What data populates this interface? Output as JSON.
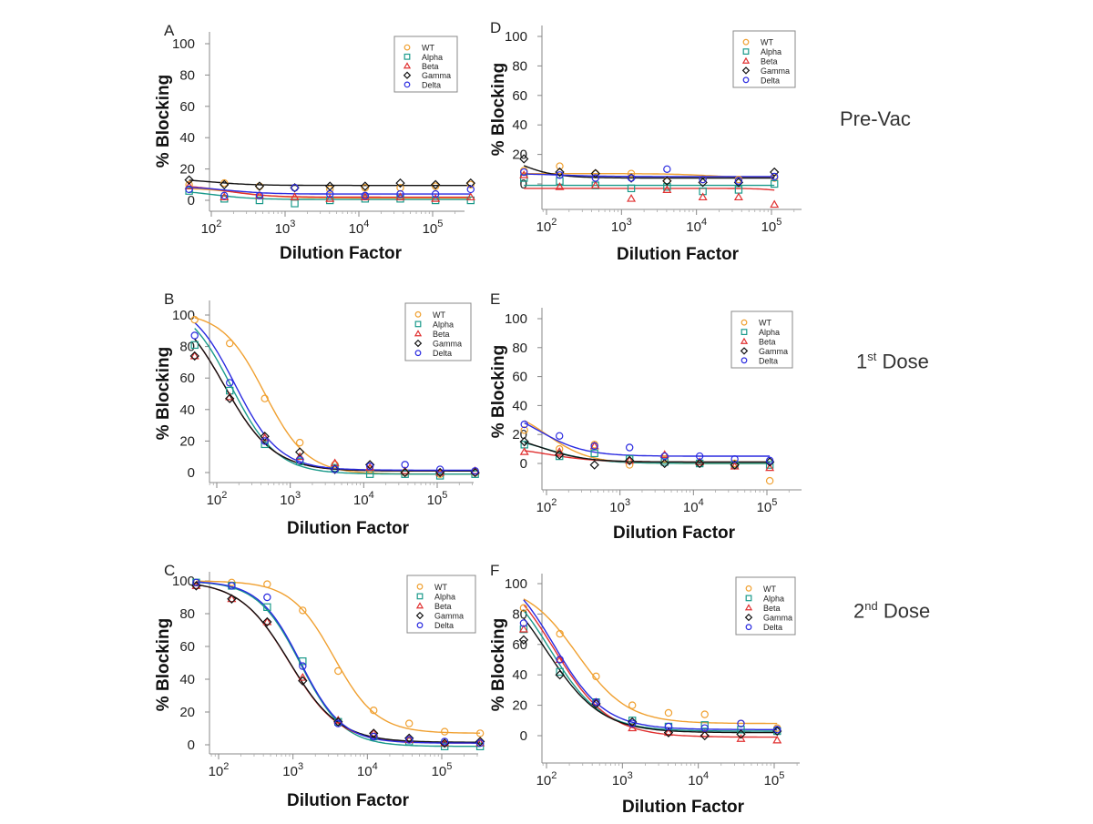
{
  "row_labels": [
    {
      "main": "Pre-Vac",
      "sup": "",
      "rest": ""
    },
    {
      "main": "1",
      "sup": "st",
      "rest": " Dose"
    },
    {
      "main": "2",
      "sup": "nd",
      "rest": " Dose"
    }
  ],
  "colors": {
    "WT": "#f0a030",
    "Alpha": "#1a9a8a",
    "Beta": "#e03030",
    "Gamma": "#111111",
    "Delta": "#2a2ae0"
  },
  "markers": {
    "WT": "circle",
    "Alpha": "square",
    "Beta": "triangle",
    "Gamma": "diamond",
    "Delta": "circle"
  },
  "chart_data": [
    {
      "panel": "A",
      "type": "scatter",
      "xlabel": "Dilution Factor",
      "ylabel": "% Blocking",
      "x_scale": "log",
      "xlim": [
        20,
        700000
      ],
      "ylim": [
        -5,
        105
      ],
      "yticks": [
        0,
        20,
        40,
        60,
        80,
        100
      ],
      "xticks": [
        100,
        1000,
        10000,
        100000
      ],
      "legend": "top-right",
      "series": [
        {
          "name": "WT",
          "x": [
            50,
            150,
            450,
            1350,
            4050,
            12150,
            36450,
            109350,
            328050
          ],
          "y": [
            10,
            11,
            9,
            8,
            7,
            8,
            8,
            9,
            10
          ],
          "fit": [
            8,
            1.5,
            2.4,
            1.5
          ]
        },
        {
          "name": "Alpha",
          "x": [
            50,
            150,
            450,
            1350,
            4050,
            12150,
            36450,
            109350,
            328050
          ],
          "y": [
            6,
            1,
            0,
            -2,
            0,
            1,
            1,
            0,
            0
          ],
          "fit": [
            7,
            0.5,
            2.0,
            1.5
          ]
        },
        {
          "name": "Beta",
          "x": [
            50,
            150,
            450,
            1350,
            4050,
            12150,
            36450,
            109350,
            328050
          ],
          "y": [
            9,
            2,
            3,
            2,
            1,
            2,
            2,
            1,
            2
          ],
          "fit": [
            10,
            2,
            2.2,
            1.5
          ]
        },
        {
          "name": "Gamma",
          "x": [
            50,
            150,
            450,
            1350,
            4050,
            12150,
            36450,
            109350,
            328050
          ],
          "y": [
            13,
            10,
            9,
            8,
            9,
            9,
            11,
            10,
            11
          ],
          "fit": [
            14,
            9.5,
            2.0,
            1.5
          ]
        },
        {
          "name": "Delta",
          "x": [
            50,
            150,
            450,
            1350,
            4050,
            12150,
            36450,
            109350,
            328050
          ],
          "y": [
            7,
            3,
            3,
            8,
            4,
            3,
            4,
            4,
            7
          ],
          "fit": [
            9,
            4,
            2.2,
            1.5
          ]
        }
      ]
    },
    {
      "panel": "B",
      "type": "scatter",
      "xlabel": "Dilution Factor",
      "ylabel": "% Blocking",
      "x_scale": "log",
      "xlim": [
        20,
        700000
      ],
      "ylim": [
        -5,
        105
      ],
      "yticks": [
        0,
        20,
        40,
        60,
        80,
        100
      ],
      "xticks": [
        100,
        1000,
        10000,
        100000
      ],
      "legend": "top-right",
      "series": [
        {
          "name": "WT",
          "x": [
            50,
            150,
            450,
            1350,
            4050,
            12150,
            36450,
            109350,
            328050
          ],
          "y": [
            97,
            82,
            47,
            19,
            5,
            2,
            0,
            -1,
            0
          ],
          "fit": [
            102,
            -1,
            2.65,
            1.5
          ]
        },
        {
          "name": "Alpha",
          "x": [
            50,
            150,
            450,
            1350,
            4050,
            12150,
            36450,
            109350,
            328050
          ],
          "y": [
            81,
            52,
            18,
            7,
            3,
            -1,
            -1,
            -2,
            -1
          ],
          "fit": [
            110,
            -1,
            2.2,
            1.4
          ]
        },
        {
          "name": "Beta",
          "x": [
            50,
            150,
            450,
            1350,
            4050,
            12150,
            36450,
            109350,
            328050
          ],
          "y": [
            74,
            48,
            22,
            10,
            6,
            3,
            1,
            0,
            1
          ],
          "fit": [
            110,
            1,
            2.1,
            1.3
          ]
        },
        {
          "name": "Gamma",
          "x": [
            50,
            150,
            450,
            1350,
            4050,
            12150,
            36450,
            109350,
            328050
          ],
          "y": [
            74,
            47,
            23,
            13,
            2,
            5,
            0,
            0,
            0
          ],
          "fit": [
            110,
            1,
            2.1,
            1.3
          ]
        },
        {
          "name": "Delta",
          "x": [
            50,
            150,
            450,
            1350,
            4050,
            12150,
            36450,
            109350,
            328050
          ],
          "y": [
            87,
            57,
            20,
            8,
            2,
            4,
            5,
            2,
            1
          ],
          "fit": [
            110,
            1.5,
            2.25,
            1.45
          ]
        }
      ]
    },
    {
      "panel": "C",
      "type": "scatter",
      "xlabel": "Dilution Factor",
      "ylabel": "% Blocking",
      "x_scale": "log",
      "xlim": [
        20,
        700000
      ],
      "ylim": [
        -5,
        105
      ],
      "yticks": [
        0,
        20,
        40,
        60,
        80,
        100
      ],
      "xticks": [
        100,
        1000,
        10000,
        100000
      ],
      "legend": "top-right",
      "series": [
        {
          "name": "WT",
          "x": [
            50,
            150,
            450,
            1350,
            4050,
            12150,
            36450,
            109350,
            328050
          ],
          "y": [
            99,
            99,
            98,
            82,
            45,
            21,
            13,
            8,
            7
          ],
          "fit": [
            100,
            7,
            3.55,
            1.5
          ]
        },
        {
          "name": "Alpha",
          "x": [
            50,
            150,
            450,
            1350,
            4050,
            12150,
            36450,
            109350,
            328050
          ],
          "y": [
            99,
            97,
            84,
            51,
            14,
            5,
            2,
            -1,
            -1
          ],
          "fit": [
            100,
            -1,
            3.1,
            1.5
          ]
        },
        {
          "name": "Beta",
          "x": [
            50,
            150,
            450,
            1350,
            4050,
            12150,
            36450,
            109350,
            328050
          ],
          "y": [
            97,
            89,
            75,
            41,
            15,
            7,
            3,
            1,
            1
          ],
          "fit": [
            100,
            1,
            2.95,
            1.3
          ]
        },
        {
          "name": "Gamma",
          "x": [
            50,
            150,
            450,
            1350,
            4050,
            12150,
            36450,
            109350,
            328050
          ],
          "y": [
            97,
            89,
            75,
            39,
            14,
            7,
            4,
            1,
            2
          ],
          "fit": [
            100,
            1.5,
            2.95,
            1.3
          ]
        },
        {
          "name": "Delta",
          "x": [
            50,
            150,
            450,
            1350,
            4050,
            12150,
            36450,
            109350,
            328050
          ],
          "y": [
            99,
            97,
            90,
            48,
            13,
            5,
            3,
            2,
            1
          ],
          "fit": [
            100,
            1,
            3.1,
            1.55
          ]
        }
      ]
    },
    {
      "panel": "D",
      "type": "scatter",
      "xlabel": "Dilution Factor",
      "ylabel": "% Blocking",
      "x_scale": "log",
      "xlim": [
        20,
        700000
      ],
      "ylim": [
        -15,
        100
      ],
      "yticks": [
        0,
        20,
        40,
        60,
        80,
        100
      ],
      "xticks": [
        100,
        1000,
        10000,
        100000
      ],
      "legend": "top-right",
      "series": [
        {
          "name": "WT",
          "x": [
            50,
            150,
            450,
            1350,
            4050,
            12150,
            36450,
            109350
          ],
          "y": [
            9,
            12,
            7,
            7,
            2,
            3,
            3,
            4
          ],
          "fit": [
            7,
            4,
            4.2,
            1.5
          ]
        },
        {
          "name": "Alpha",
          "x": [
            50,
            150,
            450,
            1350,
            4050,
            12150,
            36450,
            109350
          ],
          "y": [
            4,
            2,
            -1,
            -3,
            -2,
            -5,
            -4,
            0
          ],
          "fit": [
            -1,
            -1,
            3,
            1
          ]
        },
        {
          "name": "Beta",
          "x": [
            50,
            150,
            450,
            1350,
            4050,
            12150,
            36450,
            109350
          ],
          "y": [
            6,
            -2,
            -1,
            -10,
            -4,
            -9,
            -9,
            -14
          ],
          "fit": [
            -3,
            -25,
            5.6,
            2.2
          ]
        },
        {
          "name": "Gamma",
          "x": [
            50,
            150,
            450,
            1350,
            4050,
            12150,
            36450,
            109350
          ],
          "y": [
            17,
            8,
            7,
            4,
            2,
            1,
            1,
            8
          ],
          "fit": [
            30,
            4,
            1.5,
            1.6
          ]
        },
        {
          "name": "Delta",
          "x": [
            50,
            150,
            450,
            1350,
            4050,
            12150,
            36450,
            109350
          ],
          "y": [
            8,
            6,
            4,
            4,
            10,
            3,
            2,
            5
          ],
          "fit": [
            7,
            5,
            2.2,
            1.5
          ]
        }
      ]
    },
    {
      "panel": "E",
      "type": "scatter",
      "xlabel": "Dilution Factor",
      "ylabel": "% Blocking",
      "x_scale": "log",
      "xlim": [
        20,
        700000
      ],
      "ylim": [
        -15,
        100
      ],
      "yticks": [
        0,
        20,
        40,
        60,
        80,
        100
      ],
      "xticks": [
        100,
        1000,
        10000,
        100000
      ],
      "legend": "top-right",
      "series": [
        {
          "name": "WT",
          "x": [
            50,
            150,
            450,
            1350,
            4050,
            12150,
            36450,
            109350
          ],
          "y": [
            23,
            10,
            13,
            -1,
            3,
            0,
            0,
            -12
          ],
          "fit": [
            40,
            0,
            2.0,
            1.5
          ]
        },
        {
          "name": "Alpha",
          "x": [
            50,
            150,
            450,
            1350,
            4050,
            12150,
            36450,
            109350
          ],
          "y": [
            13,
            5,
            7,
            3,
            1,
            0,
            -1,
            -1
          ],
          "fit": [
            20,
            0,
            2.0,
            1.3
          ]
        },
        {
          "name": "Beta",
          "x": [
            50,
            150,
            450,
            1350,
            4050,
            12150,
            36450,
            109350
          ],
          "y": [
            8,
            8,
            12,
            2,
            6,
            1,
            -2,
            -3
          ],
          "fit": [
            12,
            1,
            2.0,
            1.3
          ]
        },
        {
          "name": "Gamma",
          "x": [
            50,
            150,
            450,
            1350,
            4050,
            12150,
            36450,
            109350
          ],
          "y": [
            15,
            6,
            -1,
            2,
            0,
            0,
            -1,
            1
          ],
          "fit": [
            22,
            1,
            1.9,
            1.4
          ]
        },
        {
          "name": "Delta",
          "x": [
            50,
            150,
            450,
            1350,
            4050,
            12150,
            36450,
            109350
          ],
          "y": [
            27,
            19,
            12,
            11,
            5,
            5,
            3,
            2
          ],
          "fit": [
            40,
            5,
            1.9,
            1.4
          ]
        }
      ]
    },
    {
      "panel": "F",
      "type": "scatter",
      "xlabel": "Dilution Factor",
      "ylabel": "% Blocking",
      "x_scale": "log",
      "xlim": [
        20,
        700000
      ],
      "ylim": [
        -15,
        100
      ],
      "yticks": [
        0,
        20,
        40,
        60,
        80,
        100
      ],
      "xticks": [
        100,
        1000,
        10000,
        100000
      ],
      "legend": "top-right",
      "series": [
        {
          "name": "WT",
          "x": [
            50,
            150,
            450,
            1350,
            4050,
            12150,
            36450,
            109350
          ],
          "y": [
            84,
            67,
            39,
            20,
            15,
            14,
            8,
            5
          ],
          "fit": [
            100,
            8,
            2.4,
            1.3
          ]
        },
        {
          "name": "Alpha",
          "x": [
            50,
            150,
            450,
            1350,
            4050,
            12150,
            36450,
            109350
          ],
          "y": [
            70,
            42,
            22,
            10,
            6,
            7,
            4,
            3
          ],
          "fit": [
            110,
            3,
            2.05,
            1.3
          ]
        },
        {
          "name": "Beta",
          "x": [
            50,
            150,
            450,
            1350,
            4050,
            12150,
            36450,
            109350
          ],
          "y": [
            70,
            50,
            22,
            5,
            2,
            1,
            -2,
            -3
          ],
          "fit": [
            115,
            -1,
            2.1,
            1.2
          ]
        },
        {
          "name": "Gamma",
          "x": [
            50,
            150,
            450,
            1350,
            4050,
            12150,
            36450,
            109350
          ],
          "y": [
            63,
            40,
            21,
            9,
            2,
            0,
            1,
            3
          ],
          "fit": [
            110,
            2,
            2.0,
            1.2
          ]
        },
        {
          "name": "Delta",
          "x": [
            50,
            150,
            450,
            1350,
            4050,
            12150,
            36450,
            109350
          ],
          "y": [
            74,
            50,
            22,
            8,
            6,
            5,
            8,
            4
          ],
          "fit": [
            115,
            4,
            2.1,
            1.3
          ]
        }
      ]
    }
  ]
}
